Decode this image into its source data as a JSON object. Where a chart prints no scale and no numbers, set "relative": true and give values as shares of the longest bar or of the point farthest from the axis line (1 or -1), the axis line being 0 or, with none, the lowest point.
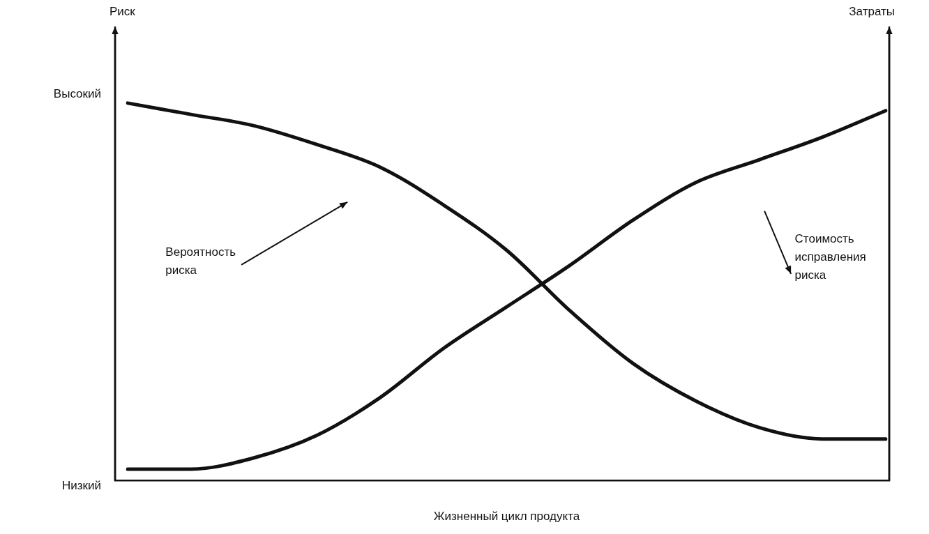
{
  "chart_data": {
    "type": "line",
    "xlabel": "Жизненный цикл продукта",
    "categories": [
      null,
      null,
      null,
      null,
      null,
      null,
      null,
      null,
      null,
      null,
      null,
      null,
      null
    ],
    "relative": true,
    "series": [
      {
        "color": "#111111",
        "values": [
          1,
          0.97,
          0.94,
          0.89,
          0.83,
          0.73,
          0.61,
          0.45,
          0.31,
          0.21,
          0.14,
          0.11,
          0.11
        ]
      },
      {
        "color": "#111111",
        "values": [
          0.03,
          0.03,
          0.06,
          0.12,
          0.22,
          0.35,
          0.46,
          0.57,
          0.69,
          0.79,
          0.85,
          0.91,
          0.98
        ]
      }
    ],
    "annotations": [
      "Вероятность риска",
      "Стоимость исправления риска",
      "Высокий",
      "Низкий",
      "Риск",
      "Затраты"
    ],
    "grid": false,
    "legend": false,
    "marker": "none",
    "line_style": "solid"
  }
}
